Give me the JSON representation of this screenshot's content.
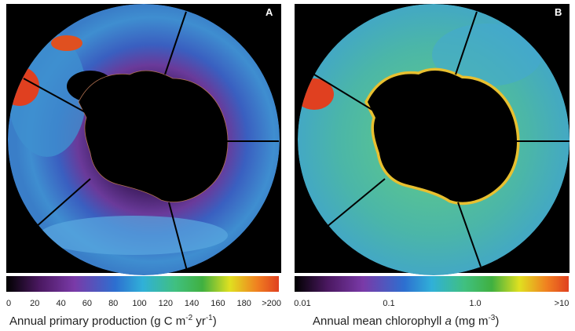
{
  "panels": [
    {
      "label": "A",
      "colorbar": {
        "ticks": [
          "0",
          "20",
          "40",
          "60",
          "80",
          "100",
          "120",
          "140",
          "160",
          "180",
          ">200"
        ]
      },
      "caption": [
        "Annual primary production (g C m",
        "-2",
        " yr",
        "-1",
        ")"
      ]
    },
    {
      "label": "B",
      "colorbar": {
        "ticks": [
          "0.01",
          "0.1",
          "1.0",
          ">10"
        ]
      },
      "caption": [
        "Annual mean chlorophyll ",
        "a",
        " (mg m",
        "-3",
        ")"
      ]
    }
  ]
}
